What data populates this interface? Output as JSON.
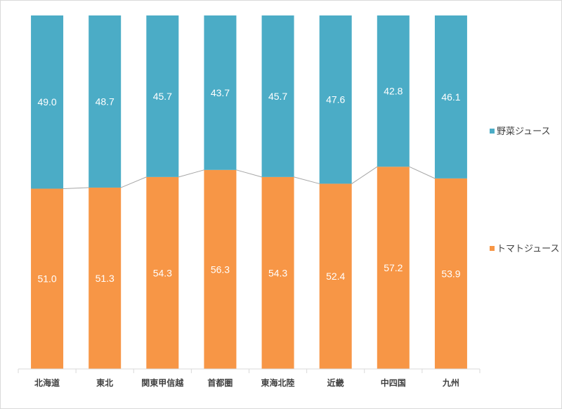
{
  "chart_data": {
    "type": "bar",
    "stacked": true,
    "percent_stacked": true,
    "categories": [
      "北海道",
      "東北",
      "関東甲信越",
      "首都圏",
      "東海北陸",
      "近畿",
      "中四国",
      "九州"
    ],
    "series": [
      {
        "name": "トマトジュース",
        "color": "#f79646",
        "values": [
          51.0,
          51.3,
          54.3,
          56.3,
          54.3,
          52.4,
          57.2,
          53.9
        ]
      },
      {
        "name": "野菜ジュース",
        "color": "#4bacc6",
        "values": [
          49.0,
          48.7,
          45.7,
          43.7,
          45.7,
          47.6,
          42.8,
          46.1
        ]
      }
    ],
    "series_lines": true,
    "ylim": [
      0,
      100
    ],
    "grid": false,
    "legend_position": "right"
  }
}
